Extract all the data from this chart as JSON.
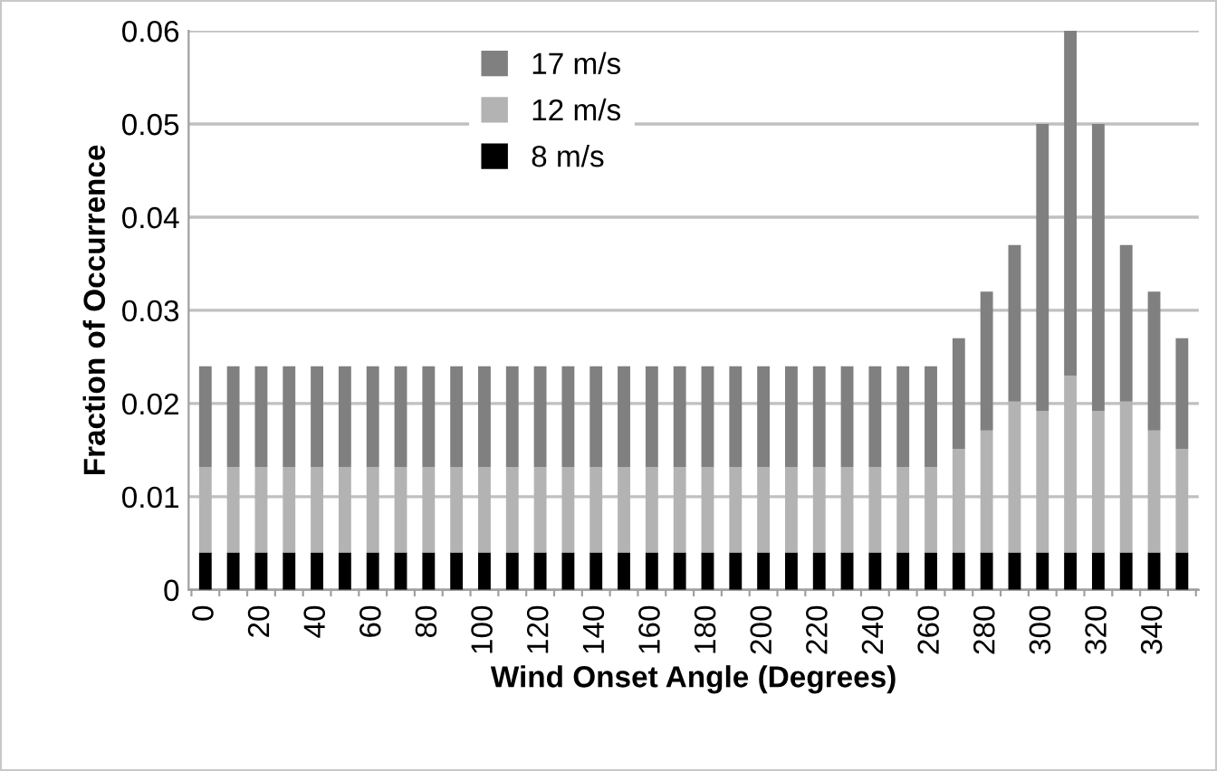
{
  "chart_data": {
    "type": "bar",
    "stacked": true,
    "xlabel": "Wind Onset Angle (Degrees)",
    "ylabel": "Fraction of Occurrence",
    "categories": [
      "0",
      null,
      "20",
      null,
      "40",
      null,
      "60",
      null,
      "80",
      null,
      "100",
      null,
      "120",
      null,
      "140",
      null,
      "160",
      null,
      "180",
      null,
      "200",
      null,
      "220",
      null,
      "240",
      null,
      "260",
      null,
      "280",
      null,
      "300",
      null,
      "320",
      null,
      "340",
      null
    ],
    "series": [
      {
        "name": "8 m/s",
        "color": "#000000",
        "values": [
          0.004,
          0.004,
          0.004,
          0.004,
          0.004,
          0.004,
          0.004,
          0.004,
          0.004,
          0.004,
          0.004,
          0.004,
          0.004,
          0.004,
          0.004,
          0.004,
          0.004,
          0.004,
          0.004,
          0.004,
          0.004,
          0.004,
          0.004,
          0.004,
          0.004,
          0.004,
          0.004,
          0.004,
          0.004,
          0.004,
          0.004,
          0.004,
          0.004,
          0.004,
          0.004,
          0.004
        ]
      },
      {
        "name": "12 m/s",
        "color": "#b3b3b3",
        "values": [
          0.0092,
          0.0092,
          0.0092,
          0.0092,
          0.0092,
          0.0092,
          0.0092,
          0.0092,
          0.0092,
          0.0092,
          0.0092,
          0.0092,
          0.0092,
          0.0092,
          0.0092,
          0.0092,
          0.0092,
          0.0092,
          0.0092,
          0.0092,
          0.0092,
          0.0092,
          0.0092,
          0.0092,
          0.0092,
          0.0092,
          0.0092,
          0.0111,
          0.0131,
          0.0162,
          0.0152,
          0.019,
          0.0152,
          0.0162,
          0.0131,
          0.0111
        ]
      },
      {
        "name": "17 m/s",
        "color": "#808080",
        "values": [
          0.0108,
          0.0108,
          0.0108,
          0.0108,
          0.0108,
          0.0108,
          0.0108,
          0.0108,
          0.0108,
          0.0108,
          0.0108,
          0.0108,
          0.0108,
          0.0108,
          0.0108,
          0.0108,
          0.0108,
          0.0108,
          0.0108,
          0.0108,
          0.0108,
          0.0108,
          0.0108,
          0.0108,
          0.0108,
          0.0108,
          0.0108,
          0.0119,
          0.0149,
          0.0168,
          0.0308,
          0.037,
          0.0308,
          0.0168,
          0.0149,
          0.0119
        ]
      }
    ],
    "ylim": [
      0,
      0.06
    ],
    "yticks": [
      0,
      0.01,
      0.02,
      0.03,
      0.04,
      0.05,
      0.06
    ],
    "grid": "y",
    "legend": "top"
  }
}
